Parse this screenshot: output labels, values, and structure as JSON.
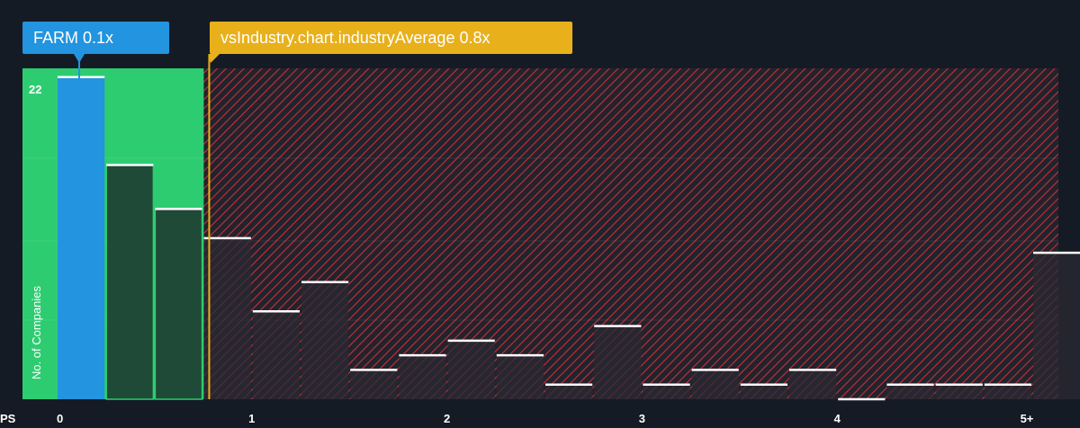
{
  "company_label": "FARM 0.1x",
  "industry_label": "vsIndustry.chart.industryAverage 0.8x",
  "colors": {
    "background": "#151b24",
    "company": "#2394df",
    "industry": "#e8b01b",
    "undervalued_zone": "#2ecc71",
    "overvalued_zone": "#d7373f",
    "bar_under": "#1f4a38",
    "bar_over": "#2a2a33"
  },
  "chart_data": {
    "type": "bar",
    "title": "",
    "xlabel": "PS",
    "ylabel": "No. of Companies",
    "x_ticks": [
      "0",
      "1",
      "2",
      "3",
      "4",
      "5+"
    ],
    "y_ticks": [
      "22"
    ],
    "ylim": [
      0,
      22.6
    ],
    "bin_width": 0.25,
    "bins": [
      0,
      0.25,
      0.5,
      0.75,
      1,
      1.25,
      1.5,
      1.75,
      2,
      2.25,
      2.5,
      2.75,
      3,
      3.25,
      3.5,
      3.75,
      4,
      4.25,
      4.5,
      4.75,
      5
    ],
    "values": [
      22,
      16,
      13,
      11,
      6,
      8,
      2,
      3,
      4,
      3,
      1,
      5,
      1,
      2,
      1,
      2,
      0,
      1,
      1,
      1,
      10
    ],
    "company_value": 0.1,
    "industry_average": 0.8,
    "grid": true
  }
}
